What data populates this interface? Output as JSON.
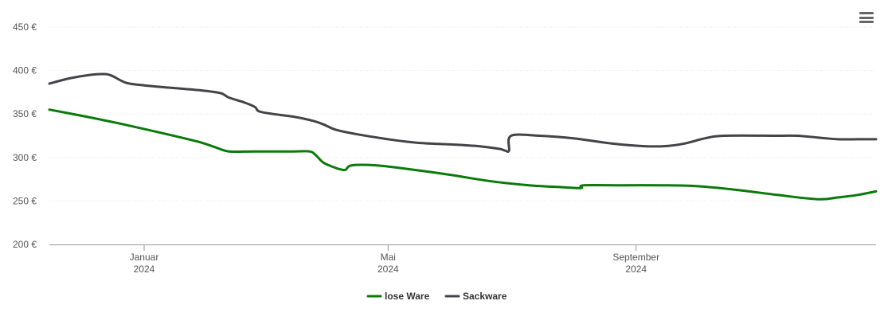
{
  "chart_data": {
    "type": "line",
    "title": "",
    "xlabel": "",
    "ylabel": "",
    "ylim": [
      200,
      450
    ],
    "xlim": [
      "2023-11-15",
      "2024-12-29"
    ],
    "y_ticks": [
      {
        "value": 200,
        "label": "200 €"
      },
      {
        "value": 250,
        "label": "250 €"
      },
      {
        "value": 300,
        "label": "300 €"
      },
      {
        "value": 350,
        "label": "350 €"
      },
      {
        "value": 400,
        "label": "400 €"
      },
      {
        "value": 450,
        "label": "450 €"
      }
    ],
    "x_ticks": [
      {
        "date": "2024-01-01",
        "label": "Januar",
        "sublabel": "2024"
      },
      {
        "date": "2024-05-01",
        "label": "Mai",
        "sublabel": "2024"
      },
      {
        "date": "2024-09-01",
        "label": "September",
        "sublabel": "2024"
      }
    ],
    "grid": "horizontal",
    "legend_position": "bottom-center",
    "series": [
      {
        "name": "lose Ware",
        "color": "#0a7a0a",
        "points": [
          [
            "2023-11-15",
            355
          ],
          [
            "2023-12-01",
            348
          ],
          [
            "2023-12-20",
            339
          ],
          [
            "2024-01-10",
            328
          ],
          [
            "2024-01-28",
            318
          ],
          [
            "2024-02-05",
            312
          ],
          [
            "2024-02-12",
            307
          ],
          [
            "2024-02-25",
            307
          ],
          [
            "2024-03-15",
            307
          ],
          [
            "2024-03-23",
            307
          ],
          [
            "2024-03-26",
            303
          ],
          [
            "2024-03-30",
            294
          ],
          [
            "2024-04-05",
            288
          ],
          [
            "2024-04-08",
            286
          ],
          [
            "2024-04-10",
            286
          ],
          [
            "2024-04-13",
            291
          ],
          [
            "2024-04-25",
            291
          ],
          [
            "2024-05-10",
            287
          ],
          [
            "2024-06-01",
            280
          ],
          [
            "2024-06-20",
            273
          ],
          [
            "2024-07-10",
            268
          ],
          [
            "2024-07-25",
            266
          ],
          [
            "2024-08-01",
            265
          ],
          [
            "2024-08-05",
            265
          ],
          [
            "2024-08-06",
            268
          ],
          [
            "2024-08-25",
            268
          ],
          [
            "2024-09-15",
            268
          ],
          [
            "2024-10-01",
            267
          ],
          [
            "2024-10-20",
            263
          ],
          [
            "2024-11-10",
            257
          ],
          [
            "2024-11-30",
            252
          ],
          [
            "2024-12-10",
            254
          ],
          [
            "2024-12-20",
            257
          ],
          [
            "2024-12-29",
            261
          ]
        ]
      },
      {
        "name": "Sackware",
        "color": "#434348",
        "points": [
          [
            "2023-11-15",
            385
          ],
          [
            "2023-11-25",
            391
          ],
          [
            "2023-12-05",
            395
          ],
          [
            "2023-12-12",
            396
          ],
          [
            "2023-12-16",
            394
          ],
          [
            "2023-12-23",
            386
          ],
          [
            "2024-01-01",
            383
          ],
          [
            "2024-01-15",
            380
          ],
          [
            "2024-01-30",
            377
          ],
          [
            "2024-02-08",
            374
          ],
          [
            "2024-02-12",
            369
          ],
          [
            "2024-02-20",
            363
          ],
          [
            "2024-02-25",
            358
          ],
          [
            "2024-02-27",
            353
          ],
          [
            "2024-03-05",
            350
          ],
          [
            "2024-03-15",
            347
          ],
          [
            "2024-03-25",
            342
          ],
          [
            "2024-03-30",
            338
          ],
          [
            "2024-04-05",
            332
          ],
          [
            "2024-04-15",
            327
          ],
          [
            "2024-05-01",
            321
          ],
          [
            "2024-05-15",
            317
          ],
          [
            "2024-06-01",
            315
          ],
          [
            "2024-06-15",
            313
          ],
          [
            "2024-06-25",
            310
          ],
          [
            "2024-06-28",
            308
          ],
          [
            "2024-06-30",
            308
          ],
          [
            "2024-07-01",
            325
          ],
          [
            "2024-07-15",
            325
          ],
          [
            "2024-08-01",
            322
          ],
          [
            "2024-08-20",
            316
          ],
          [
            "2024-09-05",
            313
          ],
          [
            "2024-09-15",
            313
          ],
          [
            "2024-09-25",
            316
          ],
          [
            "2024-10-05",
            322
          ],
          [
            "2024-10-15",
            325
          ],
          [
            "2024-11-10",
            325
          ],
          [
            "2024-11-20",
            325
          ],
          [
            "2024-11-30",
            323
          ],
          [
            "2024-12-10",
            321
          ],
          [
            "2024-12-20",
            321
          ],
          [
            "2024-12-29",
            321
          ]
        ]
      }
    ]
  },
  "menu": {
    "icon": "hamburger-menu-icon"
  }
}
